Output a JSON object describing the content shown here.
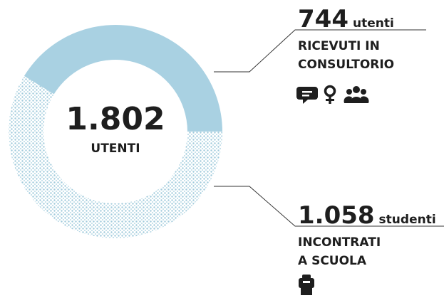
{
  "chart_data": {
    "type": "donut",
    "total": 1802,
    "total_label": "1.802",
    "center_label": "UTENTI",
    "values": [
      744,
      1058
    ],
    "value_labels": [
      "744",
      "1.058"
    ],
    "units": [
      "utenti",
      "studenti"
    ],
    "descriptions": [
      [
        "RICEVUTI IN",
        "CONSULTORIO"
      ],
      [
        "INCONTRATI",
        "A SCUOLA"
      ]
    ],
    "colors": [
      "#a9d1e2",
      "#9fcadb"
    ],
    "fill_styles": [
      "solid",
      "dotted"
    ]
  }
}
